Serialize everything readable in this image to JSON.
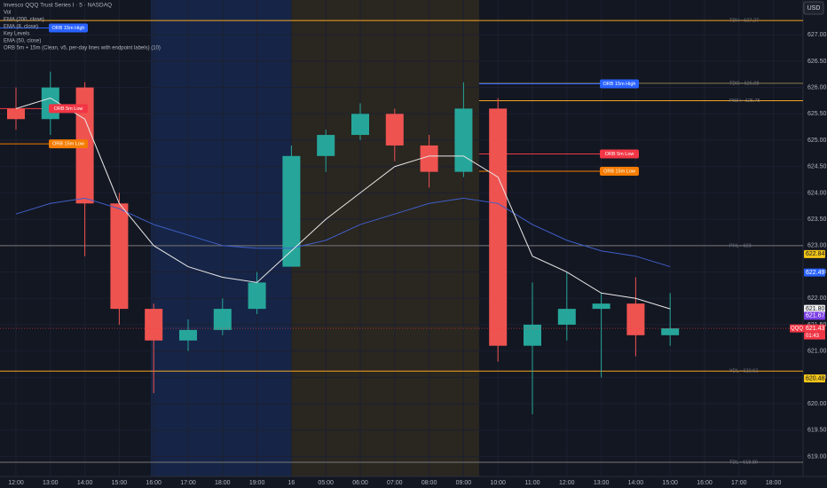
{
  "chart_data": {
    "type": "candlestick",
    "title": "Invesco QQQ Trust Series I · 5 · NASDAQ",
    "indicators": [
      "Vol",
      "EMA (8, close)",
      "Key Levels",
      "ORB 5m + 15m (Clean, v5, per-day lines with endpoint labels) (10)"
    ],
    "categories": [
      "12:00",
      "13:00",
      "14:00",
      "15:00",
      "16:00",
      "17:00",
      "18:00",
      "19:00",
      "16",
      "05:00",
      "06:00",
      "07:00",
      "08:00",
      "09:00",
      "10:00",
      "11:00",
      "12:00",
      "13:00",
      "14:00",
      "15:00",
      "16:00",
      "17:00",
      "18:00"
    ],
    "ohlc": {
      "open": [
        625.6,
        625.4,
        626.0,
        623.8,
        621.8,
        621.2,
        621.4,
        621.8,
        622.6,
        624.7,
        625.1,
        625.5,
        624.9,
        624.4,
        625.6,
        621.1,
        621.5,
        621.8,
        621.9,
        621.3,
        null,
        null,
        null
      ],
      "high": [
        626.0,
        626.3,
        626.1,
        624.0,
        621.9,
        621.6,
        622.0,
        622.5,
        624.9,
        625.2,
        625.7,
        625.6,
        625.1,
        626.1,
        625.8,
        622.3,
        622.5,
        622.1,
        622.4,
        622.1,
        null,
        null,
        null
      ],
      "low": [
        625.2,
        625.1,
        622.8,
        621.5,
        620.2,
        621.0,
        621.3,
        621.7,
        622.6,
        624.4,
        625.0,
        624.6,
        624.1,
        624.3,
        620.8,
        619.8,
        621.2,
        620.5,
        620.9,
        621.1,
        null,
        null,
        null
      ],
      "close": [
        625.4,
        626.0,
        623.8,
        621.8,
        621.2,
        621.4,
        621.8,
        622.3,
        624.7,
        625.1,
        625.5,
        624.9,
        624.4,
        625.6,
        621.1,
        621.5,
        621.8,
        621.9,
        621.3,
        621.43,
        null,
        null,
        null
      ]
    },
    "series": [
      {
        "name": "EMA (200, close)",
        "color": "#3f5fc8",
        "values": [
          623.6,
          623.8,
          623.9,
          623.7,
          623.4,
          623.2,
          623.0,
          622.95,
          622.95,
          623.1,
          623.4,
          623.6,
          623.8,
          623.9,
          623.8,
          623.4,
          623.1,
          622.9,
          622.8,
          622.6,
          null,
          null,
          null
        ]
      },
      {
        "name": "EMA (50, close)",
        "color": "#e8e8e8",
        "values": [
          625.6,
          625.8,
          625.4,
          623.8,
          623.0,
          622.6,
          622.4,
          622.3,
          622.9,
          623.5,
          624.0,
          624.5,
          624.7,
          624.7,
          624.3,
          622.8,
          622.5,
          622.1,
          622.0,
          621.8,
          null,
          null,
          null
        ]
      }
    ],
    "up_color": "#26a69a",
    "down_color": "#ef5350",
    "ylim": [
      618.62,
      627.66
    ],
    "yticks": [
      {
        "value": 619,
        "label": "619.00"
      },
      {
        "value": 619.5,
        "label": "619.50"
      },
      {
        "value": 620,
        "label": "620.00"
      },
      {
        "value": 620.5,
        "label": "620.50"
      },
      {
        "value": 621,
        "label": "621.00"
      },
      {
        "value": 621.5,
        "label": "621.50"
      },
      {
        "value": 622,
        "label": "622.00"
      },
      {
        "value": 622.5,
        "label": "622.50"
      },
      {
        "value": 623,
        "label": "623.00"
      },
      {
        "value": 623.5,
        "label": "623.50"
      },
      {
        "value": 624,
        "label": "624.00"
      },
      {
        "value": 624.5,
        "label": "624.50"
      },
      {
        "value": 625,
        "label": "625.00"
      },
      {
        "value": 625.5,
        "label": "625.50"
      },
      {
        "value": 626,
        "label": "626.00"
      },
      {
        "value": 626.5,
        "label": "626.50"
      },
      {
        "value": 627,
        "label": "627.00"
      }
    ],
    "levels": [
      {
        "label": "TDH • 627.27",
        "value": 627.27,
        "color": "#f5a623"
      },
      {
        "label": "TDO • 626.08",
        "value": 626.08,
        "color": "#8a8050"
      },
      {
        "label": "PWH • 625.75",
        "value": 625.75,
        "color": "#f5a623"
      },
      {
        "label": "PHL • 623",
        "value": 623,
        "color": "#7a7a7a"
      },
      {
        "label": "YDL • 620.62",
        "value": 620.62,
        "color": "#f5a623"
      },
      {
        "label": "TDL • 618.89",
        "value": 618.89,
        "color": "#7a7a7a"
      }
    ],
    "orb": [
      {
        "label": "ORB 15m High",
        "value": 627.13,
        "color": "#2962ff"
      },
      {
        "label": "ORB 5m Low",
        "value": 625.6,
        "color": "#f23645"
      },
      {
        "label": "ORB 15m Low",
        "value": 624.93,
        "color": "#f57c00"
      },
      {
        "label": "ORB 15m High",
        "value": 626.07,
        "color": "#2962ff"
      },
      {
        "label": "ORB 5m Low",
        "value": 624.74,
        "color": "#f23645"
      },
      {
        "label": "ORB 15m Low",
        "value": 624.41,
        "color": "#f57c00"
      }
    ],
    "price_badges": [
      {
        "value": 622.84,
        "label": "622.84",
        "color": "#f0c419"
      },
      {
        "value": 622.49,
        "label": "622.49",
        "color": "#2962ff"
      },
      {
        "value": 621.8,
        "label": "621.80",
        "color": "#eeeeee"
      },
      {
        "value": 621.67,
        "label": "621.67",
        "color": "#7b3fe4"
      },
      {
        "value": 621.43,
        "label": "621.43",
        "color": "#f23645"
      },
      {
        "value": 620.48,
        "label": "620.48",
        "color": "#f0c419"
      }
    ],
    "symbol": "QQQ",
    "countdown": "01:43",
    "currency": "USD"
  }
}
